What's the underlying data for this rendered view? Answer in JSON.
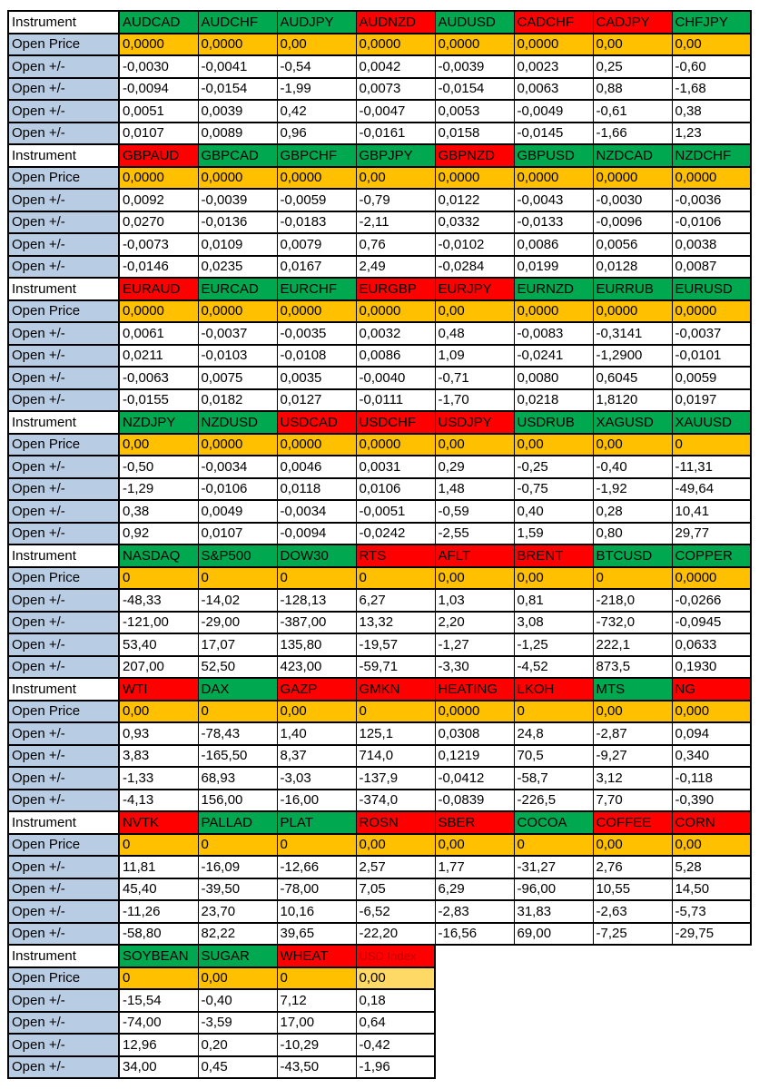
{
  "colors": {
    "green": "#00A94F",
    "red": "#FF0000",
    "orange": "#FFC000",
    "light_orange": "#FFD966",
    "label_blue": "#B8CCE4",
    "dark_red": "#C00000",
    "text": "#000000",
    "border": "#000000"
  },
  "table": {
    "row_labels": {
      "instrument": "Instrument",
      "open_price": "Open Price",
      "open_change": "Open +/-"
    },
    "blocks": [
      {
        "instruments": [
          {
            "label": "AUDCAD",
            "bg": "green"
          },
          {
            "label": "AUDCHF",
            "bg": "green"
          },
          {
            "label": "AUDJPY",
            "bg": "green"
          },
          {
            "label": "AUDNZD",
            "bg": "red"
          },
          {
            "label": "AUDUSD",
            "bg": "green"
          },
          {
            "label": "CADCHF",
            "bg": "red"
          },
          {
            "label": "CADJPY",
            "bg": "red"
          },
          {
            "label": "CHFJPY",
            "bg": "green"
          }
        ],
        "open_price": [
          "0,0000",
          "0,0000",
          "0,00",
          "0,0000",
          "0,0000",
          "0,0000",
          "0,00",
          "0,00"
        ],
        "changes": [
          [
            "-0,0030",
            "-0,0041",
            "-0,54",
            "0,0042",
            "-0,0039",
            "0,0023",
            "0,25",
            "-0,60"
          ],
          [
            "-0,0094",
            "-0,0154",
            "-1,99",
            "0,0073",
            "-0,0154",
            "0,0063",
            "0,88",
            "-1,68"
          ],
          [
            "0,0051",
            "0,0039",
            "0,42",
            "-0,0047",
            "0,0053",
            "-0,0049",
            "-0,61",
            "0,38"
          ],
          [
            "0,0107",
            "0,0089",
            "0,96",
            "-0,0161",
            "0,0158",
            "-0,0145",
            "-1,66",
            "1,23"
          ]
        ]
      },
      {
        "instruments": [
          {
            "label": "GBPAUD",
            "bg": "red"
          },
          {
            "label": "GBPCAD",
            "bg": "green"
          },
          {
            "label": "GBPCHF",
            "bg": "green"
          },
          {
            "label": "GBPJPY",
            "bg": "green"
          },
          {
            "label": "GBPNZD",
            "bg": "red"
          },
          {
            "label": "GBPUSD",
            "bg": "green"
          },
          {
            "label": "NZDCAD",
            "bg": "green"
          },
          {
            "label": "NZDCHF",
            "bg": "green"
          }
        ],
        "open_price": [
          "0,0000",
          "0,0000",
          "0,0000",
          "0,00",
          "0,0000",
          "0,0000",
          "0,0000",
          "0,0000"
        ],
        "changes": [
          [
            "0,0092",
            "-0,0039",
            "-0,0059",
            "-0,79",
            "0,0122",
            "-0,0043",
            "-0,0030",
            "-0,0036"
          ],
          [
            "0,0270",
            "-0,0136",
            "-0,0183",
            "-2,11",
            "0,0332",
            "-0,0133",
            "-0,0096",
            "-0,0106"
          ],
          [
            "-0,0073",
            "0,0109",
            "0,0079",
            "0,76",
            "-0,0102",
            "0,0086",
            "0,0056",
            "0,0038"
          ],
          [
            "-0,0146",
            "0,0235",
            "0,0167",
            "2,49",
            "-0,0284",
            "0,0199",
            "0,0128",
            "0,0087"
          ]
        ]
      },
      {
        "instruments": [
          {
            "label": "EURAUD",
            "bg": "red"
          },
          {
            "label": "EURCAD",
            "bg": "green"
          },
          {
            "label": "EURCHF",
            "bg": "green"
          },
          {
            "label": "EURGBP",
            "bg": "red"
          },
          {
            "label": "EURJPY",
            "bg": "red"
          },
          {
            "label": "EURNZD",
            "bg": "green"
          },
          {
            "label": "EURRUB",
            "bg": "green"
          },
          {
            "label": "EURUSD",
            "bg": "green"
          }
        ],
        "open_price": [
          "0,0000",
          "0,0000",
          "0,0000",
          "0,0000",
          "0,00",
          "0,0000",
          "0,0000",
          "0,0000"
        ],
        "changes": [
          [
            "0,0061",
            "-0,0037",
            "-0,0035",
            "0,0032",
            "0,48",
            "-0,0083",
            "-0,3141",
            "-0,0037"
          ],
          [
            "0,0211",
            "-0,0103",
            "-0,0108",
            "0,0086",
            "1,09",
            "-0,0241",
            "-1,2900",
            "-0,0101"
          ],
          [
            "-0,0063",
            "0,0075",
            "0,0035",
            "-0,0040",
            "-0,71",
            "0,0080",
            "0,6045",
            "0,0059"
          ],
          [
            "-0,0155",
            "0,0182",
            "0,0127",
            "-0,0111",
            "-1,70",
            "0,0218",
            "1,8120",
            "0,0197"
          ]
        ]
      },
      {
        "instruments": [
          {
            "label": "NZDJPY",
            "bg": "green"
          },
          {
            "label": "NZDUSD",
            "bg": "green"
          },
          {
            "label": "USDCAD",
            "bg": "red"
          },
          {
            "label": "USDCHF",
            "bg": "red"
          },
          {
            "label": "USDJPY",
            "bg": "red"
          },
          {
            "label": "USDRUB",
            "bg": "green"
          },
          {
            "label": "XAGUSD",
            "bg": "green"
          },
          {
            "label": "XAUUSD",
            "bg": "green"
          }
        ],
        "open_price": [
          "0,00",
          "0,0000",
          "0,0000",
          "0,0000",
          "0,00",
          "0,00",
          "0,00",
          "0"
        ],
        "changes": [
          [
            "-0,50",
            "-0,0034",
            "0,0046",
            "0,0031",
            "0,29",
            "-0,25",
            "-0,40",
            "-11,31"
          ],
          [
            "-1,29",
            "-0,0106",
            "0,0118",
            "0,0106",
            "1,48",
            "-0,75",
            "-1,92",
            "-49,64"
          ],
          [
            "0,38",
            "0,0049",
            "-0,0034",
            "-0,0051",
            "-0,59",
            "0,40",
            "0,28",
            "10,41"
          ],
          [
            "0,92",
            "0,0107",
            "-0,0094",
            "-0,0242",
            "-2,55",
            "1,59",
            "0,80",
            "29,77"
          ]
        ]
      },
      {
        "instruments": [
          {
            "label": "NASDAQ",
            "bg": "green"
          },
          {
            "label": "S&P500",
            "bg": "green"
          },
          {
            "label": "DOW30",
            "bg": "green"
          },
          {
            "label": "RTS",
            "bg": "red"
          },
          {
            "label": "AFLT",
            "bg": "red"
          },
          {
            "label": "BRENT",
            "bg": "red"
          },
          {
            "label": "BTCUSD",
            "bg": "green"
          },
          {
            "label": "COPPER",
            "bg": "green"
          }
        ],
        "open_price": [
          "0",
          "0",
          "0",
          "0",
          "0,00",
          "0,00",
          "0",
          "0,0000"
        ],
        "changes": [
          [
            "-48,33",
            "-14,02",
            "-128,13",
            "6,27",
            "1,03",
            "0,81",
            "-218,0",
            "-0,0266"
          ],
          [
            "-121,00",
            "-29,00",
            "-387,00",
            "13,32",
            "2,20",
            "3,08",
            "-732,0",
            "-0,0945"
          ],
          [
            "53,40",
            "17,07",
            "135,80",
            "-19,57",
            "-1,27",
            "-1,25",
            "222,1",
            "0,0633"
          ],
          [
            "207,00",
            "52,50",
            "423,00",
            "-59,71",
            "-3,30",
            "-4,52",
            "873,5",
            "0,1930"
          ]
        ]
      },
      {
        "instruments": [
          {
            "label": "WTI",
            "bg": "red"
          },
          {
            "label": "DAX",
            "bg": "green"
          },
          {
            "label": "GAZP",
            "bg": "red"
          },
          {
            "label": "GMKN",
            "bg": "red"
          },
          {
            "label": "HEATING",
            "bg": "red"
          },
          {
            "label": "LKOH",
            "bg": "red"
          },
          {
            "label": "MTS",
            "bg": "green"
          },
          {
            "label": "NG",
            "bg": "red"
          }
        ],
        "open_price": [
          "0,00",
          "0",
          "0,00",
          "0",
          "0,0000",
          "0",
          "0,00",
          "0,000"
        ],
        "changes": [
          [
            "0,93",
            "-78,43",
            "1,40",
            "125,1",
            "0,0308",
            "24,8",
            "-2,87",
            "0,094"
          ],
          [
            "3,83",
            "-165,50",
            "8,37",
            "714,0",
            "0,1219",
            "70,5",
            "-9,27",
            "0,340"
          ],
          [
            "-1,33",
            "68,93",
            "-3,03",
            "-137,9",
            "-0,0412",
            "-58,7",
            "3,12",
            "-0,118"
          ],
          [
            "-4,13",
            "156,00",
            "-16,00",
            "-374,0",
            "-0,0839",
            "-226,5",
            "7,70",
            "-0,390"
          ]
        ]
      },
      {
        "instruments": [
          {
            "label": "NVTK",
            "bg": "red"
          },
          {
            "label": "PALLAD",
            "bg": "green"
          },
          {
            "label": "PLAT",
            "bg": "green"
          },
          {
            "label": "ROSN",
            "bg": "red"
          },
          {
            "label": "SBER",
            "bg": "red"
          },
          {
            "label": "COCOA",
            "bg": "green"
          },
          {
            "label": "COFFEE",
            "bg": "red"
          },
          {
            "label": "CORN",
            "bg": "red"
          }
        ],
        "open_price": [
          "0",
          "0",
          "0",
          "0,00",
          "0,00",
          "0",
          "0,00",
          "0,00"
        ],
        "changes": [
          [
            "11,81",
            "-16,09",
            "-12,66",
            "2,57",
            "1,77",
            "-31,27",
            "2,76",
            "5,28"
          ],
          [
            "45,40",
            "-39,50",
            "-78,00",
            "7,05",
            "6,29",
            "-96,00",
            "10,55",
            "14,50"
          ],
          [
            "-11,26",
            "23,70",
            "10,16",
            "-6,52",
            "-2,83",
            "31,83",
            "-2,63",
            "-5,73"
          ],
          [
            "-58,80",
            "82,22",
            "39,65",
            "-22,20",
            "-16,56",
            "69,00",
            "-7,25",
            "-29,75"
          ]
        ]
      },
      {
        "instruments": [
          {
            "label": "SOYBEAN",
            "bg": "green"
          },
          {
            "label": "SUGAR",
            "bg": "green"
          },
          {
            "label": "WHEAT",
            "bg": "red"
          },
          {
            "label": "USD Index",
            "bg": "red",
            "fg": "dark_red",
            "small": true
          }
        ],
        "open_price": [
          "0",
          "0,00",
          "0",
          "0,00"
        ],
        "open_price_bg": [
          "orange",
          "orange",
          "orange",
          "light_orange"
        ],
        "changes": [
          [
            "-15,54",
            "-0,40",
            "7,12",
            "0,18"
          ],
          [
            "-74,00",
            "-3,59",
            "17,00",
            "0,64"
          ],
          [
            "12,96",
            "0,20",
            "-10,29",
            "-0,42"
          ],
          [
            "34,00",
            "0,45",
            "-43,50",
            "-1,96"
          ]
        ]
      }
    ]
  }
}
